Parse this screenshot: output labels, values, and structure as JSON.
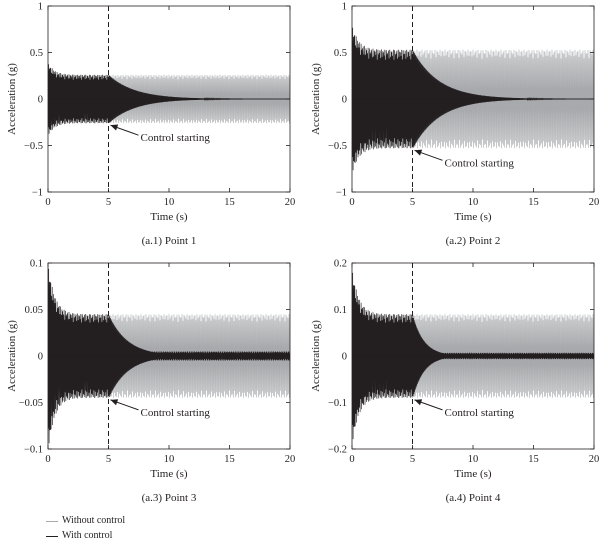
{
  "chart_data": [
    {
      "type": "line",
      "caption": "(a.1) Point 1",
      "xlabel": "Time (s)",
      "ylabel": "Acceleration (g)",
      "xlim": [
        0,
        20
      ],
      "ylim": [
        -1,
        1
      ],
      "xticks": [
        0,
        5,
        10,
        15,
        20
      ],
      "xtick_labels": [
        "0",
        "5",
        "10",
        "15",
        "20"
      ],
      "yticks": [
        -1,
        -0.5,
        0,
        0.5,
        1
      ],
      "ytick_labels": [
        "−1",
        "−0.5",
        "0",
        "0.5",
        "1"
      ],
      "control_start": 5,
      "annotation": "Control starting",
      "series": [
        {
          "name": "Without control",
          "color": "#a7a9ac",
          "steady_amplitude": 0.26
        },
        {
          "name": "With control",
          "color": "#231f20",
          "initial_peak": 0.39,
          "pre_amplitude": 0.26,
          "decay_to_zero_by": 12,
          "residual_amplitude": 0.0
        }
      ]
    },
    {
      "type": "line",
      "caption": "(a.2) Point 2",
      "xlabel": "Time (s)",
      "ylabel": "Acceleration (g)",
      "xlim": [
        0,
        20
      ],
      "ylim": [
        -1,
        1
      ],
      "xticks": [
        0,
        5,
        10,
        15,
        20
      ],
      "xtick_labels": [
        "0",
        "5",
        "10",
        "15",
        "20"
      ],
      "yticks": [
        -1,
        -0.5,
        0,
        0.5,
        1
      ],
      "ytick_labels": [
        "−1",
        "−0.5",
        "0",
        "0.5",
        "1"
      ],
      "control_start": 5,
      "annotation": "Control starting",
      "series": [
        {
          "name": "Without control",
          "color": "#a7a9ac",
          "steady_amplitude": 0.53
        },
        {
          "name": "With control",
          "color": "#231f20",
          "initial_peak": 0.8,
          "pre_amplitude": 0.53,
          "decay_to_zero_by": 12,
          "residual_amplitude": 0.0
        }
      ]
    },
    {
      "type": "line",
      "caption": "(a.3) Point 3",
      "xlabel": "Time (s)",
      "ylabel": "Acceleration (g)",
      "xlim": [
        0,
        20
      ],
      "ylim": [
        -0.1,
        0.1
      ],
      "xticks": [
        0,
        5,
        10,
        15,
        20
      ],
      "xtick_labels": [
        "0",
        "5",
        "10",
        "15",
        "20"
      ],
      "yticks": [
        -0.1,
        -0.05,
        0,
        0.05,
        0.1
      ],
      "ytick_labels": [
        "−0.1",
        "−0.05",
        "0",
        "0.05",
        "0.1"
      ],
      "control_start": 5,
      "annotation": "Control starting",
      "series": [
        {
          "name": "Without control",
          "color": "#a7a9ac",
          "steady_amplitude": 0.045
        },
        {
          "name": "With control",
          "color": "#231f20",
          "initial_peak": 0.1,
          "pre_amplitude": 0.045,
          "decay_to_zero_by": 10,
          "residual_amplitude": 0.005
        }
      ]
    },
    {
      "type": "line",
      "caption": "(a.4) Point 4",
      "xlabel": "Time (s)",
      "ylabel": "Acceleration (g)",
      "xlim": [
        0,
        20
      ],
      "ylim": [
        -0.2,
        0.2
      ],
      "xticks": [
        0,
        5,
        10,
        15,
        20
      ],
      "xtick_labels": [
        "0",
        "5",
        "10",
        "15",
        "20"
      ],
      "yticks": [
        -0.2,
        -0.1,
        0,
        0.1,
        0.2
      ],
      "ytick_labels": [
        "−0.2",
        "−0.1",
        "0",
        "0.1",
        "0.2"
      ],
      "control_start": 5,
      "annotation": "Control starting",
      "series": [
        {
          "name": "Without control",
          "color": "#a7a9ac",
          "steady_amplitude": 0.09
        },
        {
          "name": "With control",
          "color": "#231f20",
          "initial_peak": 0.19,
          "pre_amplitude": 0.09,
          "decay_to_zero_by": 8,
          "residual_amplitude": 0.007
        }
      ]
    }
  ],
  "legend": [
    {
      "label": "Without control",
      "color": "#a7a9ac"
    },
    {
      "label": "With control",
      "color": "#231f20"
    }
  ]
}
